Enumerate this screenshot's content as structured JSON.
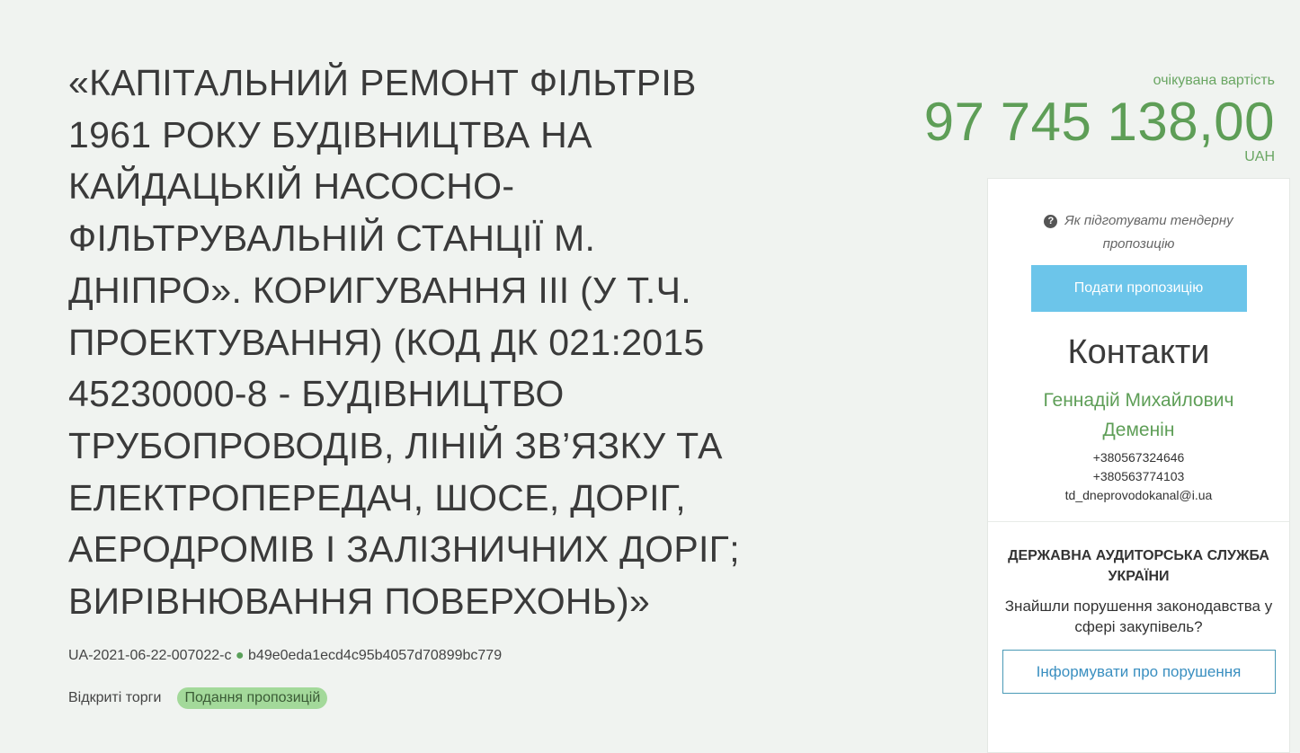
{
  "tender": {
    "title_lines": [
      "«КАПІТАЛЬНИЙ РЕМОНТ ФІЛЬТРІВ",
      "1961 РОКУ БУДІВНИЦТВА НА",
      "КАЙДАЦЬКІЙ НАСОСНО-",
      "ФІЛЬТРУВАЛЬНІЙ СТАНЦІЇ М.",
      "ДНІПРО». КОРИГУВАННЯ ІІІ (У Т.Ч.",
      "ПРОЕКТУВАННЯ) (КОД ДК 021:2015",
      "45230000-8 - БУДІВНИЦТВО",
      "ТРУБОПРОВОДІВ, ЛІНІЙ ЗВ’ЯЗКУ ТА",
      "ЕЛЕКТРОПЕРЕДАЧ, ШОСЕ, ДОРІГ,",
      "АЕРОДРОМІВ І ЗАЛІЗНИЧНИХ ДОРІГ;",
      "ВИРІВНЮВАННЯ ПОВЕРХОНЬ)»"
    ],
    "tender_id": "UA-2021-06-22-007022-c",
    "separator": "●",
    "hash": "b49e0eda1ecd4c95b4057d70899bc779",
    "procedure_type": "Відкриті торги",
    "status": "Подання пропозицій"
  },
  "price": {
    "label": "очікувана вартість",
    "amount": "97 745 138,00",
    "currency": "UAH"
  },
  "sidebar": {
    "howto_icon": "question-circle-icon",
    "howto_label": "Як підготувати тендерну пропозицію",
    "submit_label": "Подати пропозицію",
    "contacts_heading": "Контакти",
    "contact_name": "Геннадій Михайлович Деменін",
    "phones": [
      "+380567324646",
      "+380563774103"
    ],
    "email": "td_dneprovodokanal@i.ua",
    "audit_heading": "ДЕРЖАВНА АУДИТОРСЬКА СЛУЖБА УКРАЇНИ",
    "audit_question": "Знайшли порушення законодавства у сфері закупівель?",
    "report_label": "Інформувати про порушення"
  },
  "colors": {
    "accent_green": "#5e9e57",
    "button_blue": "#6cc5ea",
    "badge_green": "#a3d99a"
  }
}
